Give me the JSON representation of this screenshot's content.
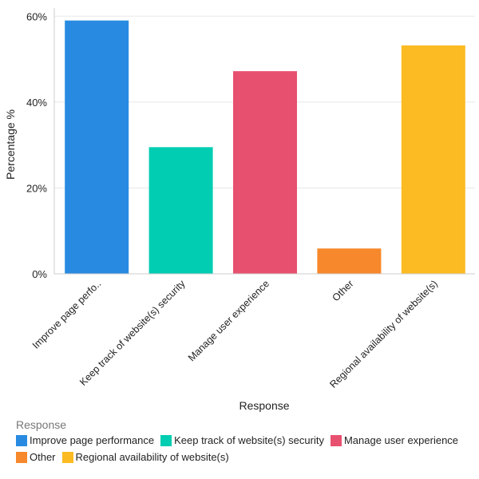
{
  "chart_data": {
    "type": "bar",
    "xlabel": "Response",
    "ylabel": "Percentage %",
    "ylim": [
      0,
      60
    ],
    "yticks": [
      "0%",
      "20%",
      "40%",
      "60%"
    ],
    "ytick_values": [
      0,
      20,
      40,
      60
    ],
    "grid": true,
    "categories": [
      "Improve page perfo..",
      "Keep track of website(s) security",
      "Manage user experience",
      "Other",
      "Regional availability of website(s)"
    ],
    "values": [
      59,
      29.5,
      47.2,
      5.9,
      53.2
    ],
    "colors": [
      "#288be1",
      "#00cdb2",
      "#e8506f",
      "#f7882b",
      "#fcbb22"
    ],
    "legend": {
      "title": "Response",
      "position": "bottom-left",
      "items": [
        "Improve page performance",
        "Keep track of website(s) security",
        "Manage user experience",
        "Other",
        "Regional availability of website(s)"
      ]
    }
  }
}
